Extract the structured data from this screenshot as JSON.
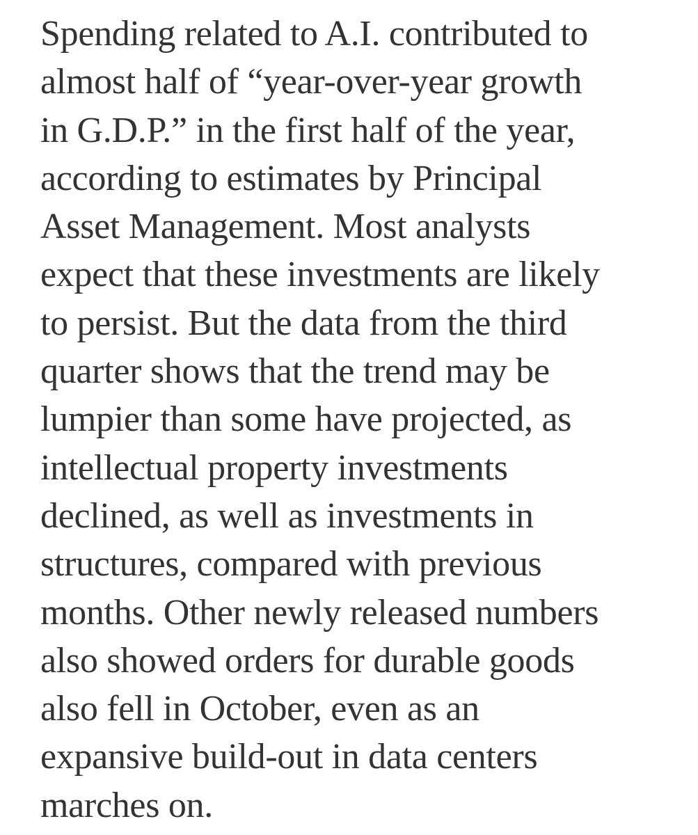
{
  "article": {
    "text_color": "#333333",
    "background_color": "#ffffff",
    "lines": [
      "Spending related to A.I. contributed to",
      "almost half of “year-over-year growth",
      "in G.D.P.” in the first half of the year,",
      "according to estimates by Principal",
      "Asset Management. Most analysts",
      "expect that these investments are likely",
      "to persist. But the data from the third",
      "quarter shows that the trend may be",
      "lumpier than some have projected, as",
      "intellectual property investments",
      "declined, as well as investments in",
      "structures, compared with previous",
      "months. Other newly released numbers",
      "also showed orders for durable goods",
      "also fell in October, even as an",
      "expansive build-out in data centers",
      "marches on."
    ]
  }
}
